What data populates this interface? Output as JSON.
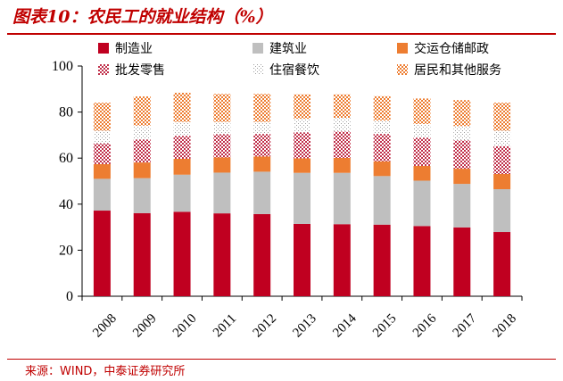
{
  "title": "图表10：农民工的就业结构（%）",
  "source": "来源：WIND，中泰证券研究所",
  "chart_data": {
    "type": "bar",
    "stacked": true,
    "categories": [
      "2008",
      "2009",
      "2010",
      "2011",
      "2012",
      "2013",
      "2014",
      "2015",
      "2016",
      "2017",
      "2018"
    ],
    "ylim": [
      0,
      100
    ],
    "yticks": [
      0,
      20,
      40,
      60,
      80,
      100
    ],
    "legend_position": "top",
    "series": [
      {
        "name": "制造业",
        "color": "#c00020",
        "pattern": "solid",
        "values": [
          37.2,
          36.1,
          36.7,
          36.0,
          35.7,
          31.4,
          31.3,
          31.1,
          30.5,
          29.9,
          27.9
        ]
      },
      {
        "name": "建筑业",
        "color": "#bfbfbf",
        "pattern": "solid",
        "values": [
          13.8,
          15.2,
          16.1,
          17.7,
          18.4,
          22.2,
          22.3,
          21.1,
          19.7,
          18.9,
          18.6
        ]
      },
      {
        "name": "交运仓储邮政",
        "color": "#ed7d31",
        "pattern": "solid",
        "values": [
          6.4,
          6.8,
          6.9,
          6.6,
          6.6,
          6.3,
          6.5,
          6.4,
          6.4,
          6.6,
          6.6
        ]
      },
      {
        "name": "批发零售",
        "color": "#c0304a",
        "pattern": "dots",
        "values": [
          9.0,
          10.0,
          10.0,
          10.1,
          9.8,
          11.3,
          11.4,
          11.9,
          12.3,
          12.3,
          12.1
        ]
      },
      {
        "name": "住宿餐饮",
        "color": "#a0a0a0",
        "pattern": "sparse",
        "values": [
          5.5,
          6.0,
          6.0,
          5.3,
          5.2,
          5.9,
          6.0,
          5.8,
          5.9,
          6.2,
          6.7
        ]
      },
      {
        "name": "居民和其他服务",
        "color": "#ed7d31",
        "pattern": "dots",
        "values": [
          12.2,
          12.7,
          12.7,
          12.2,
          12.2,
          10.6,
          10.2,
          10.6,
          11.1,
          11.3,
          12.2
        ]
      }
    ]
  }
}
